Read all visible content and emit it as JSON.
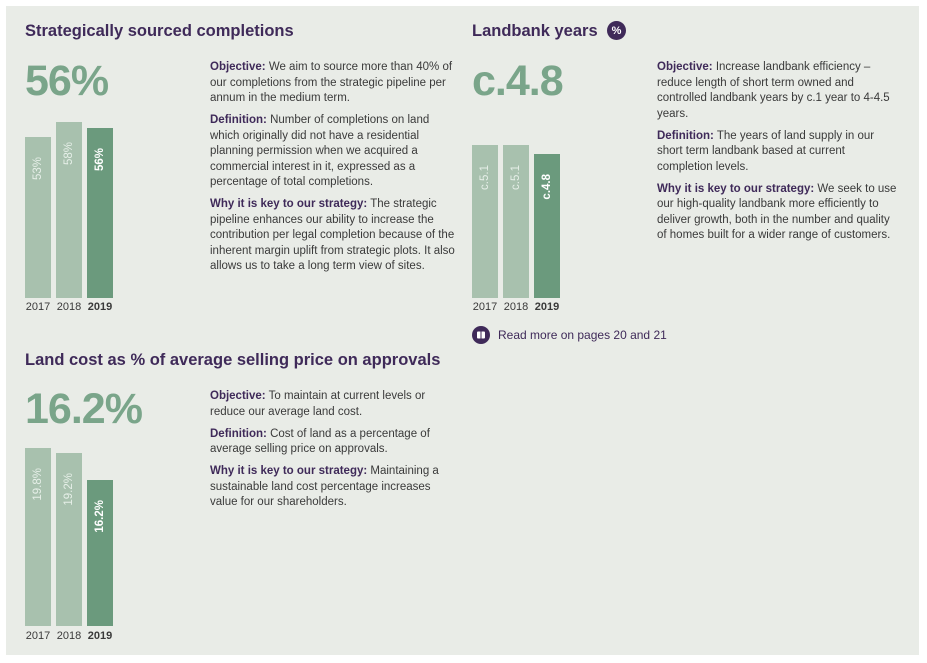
{
  "kpis": {
    "sourced": {
      "title": "Strategically sourced completions",
      "big_value": "56%",
      "bars": [
        {
          "year": "2017",
          "label": "53%",
          "value": 53
        },
        {
          "year": "2018",
          "label": "58%",
          "value": 58
        },
        {
          "year": "2019",
          "label": "56%",
          "value": 56
        }
      ],
      "objective_label": "Objective:",
      "objective_text": "We aim to source more than 40% of our completions from the strategic pipeline per annum in the medium term.",
      "definition_label": "Definition:",
      "definition_text": "Number of completions on land which originally did not have a residential planning permission when we acquired a commercial interest in it, expressed as a percentage of total completions.",
      "why_label": "Why it is key to our strategy:",
      "why_text": "The strategic pipeline enhances our ability to increase the contribution per legal completion because of the inherent margin uplift from strategic plots. It also allows us to take a long term view of sites."
    },
    "landbank": {
      "title": "Landbank years",
      "badge": "%",
      "big_value": "c.4.8",
      "bars": [
        {
          "year": "2017",
          "label": "c.5.1",
          "value": 5.1
        },
        {
          "year": "2018",
          "label": "c.5.1",
          "value": 5.1
        },
        {
          "year": "2019",
          "label": "c.4.8",
          "value": 4.8
        }
      ],
      "objective_label": "Objective:",
      "objective_text": "Increase landbank efficiency – reduce length of short term owned and controlled landbank years by c.1 year to 4-4.5 years.",
      "definition_label": "Definition:",
      "definition_text": "The years of land supply in our short term landbank based at current completion levels.",
      "why_label": "Why it is key to our strategy:",
      "why_text": "We seek to use our high-quality landbank more efficiently to deliver growth, both in the number and quality of homes built for a wider range of customers.",
      "read_more": "Read more on pages 20 and 21"
    },
    "landcost": {
      "title": "Land cost as % of average selling price on approvals",
      "big_value": "16.2%",
      "bars": [
        {
          "year": "2017",
          "label": "19.8%",
          "value": 19.8
        },
        {
          "year": "2018",
          "label": "19.2%",
          "value": 19.2
        },
        {
          "year": "2019",
          "label": "16.2%",
          "value": 16.2
        }
      ],
      "objective_label": "Objective:",
      "objective_text": "To maintain at current levels or reduce our average land cost.",
      "definition_label": "Definition:",
      "definition_text": "Cost of land as a percentage of average selling price on approvals.",
      "why_label": "Why it is key to our strategy:",
      "why_text": "Maintaining a sustainable land cost percentage increases value for our shareholders."
    }
  },
  "colors": {
    "title": "#3f2a59",
    "big_value": "#7aa58a",
    "bar_previous": "#a8c1ae",
    "bar_current": "#6b9a7d",
    "panel": "#e9ece7"
  }
}
